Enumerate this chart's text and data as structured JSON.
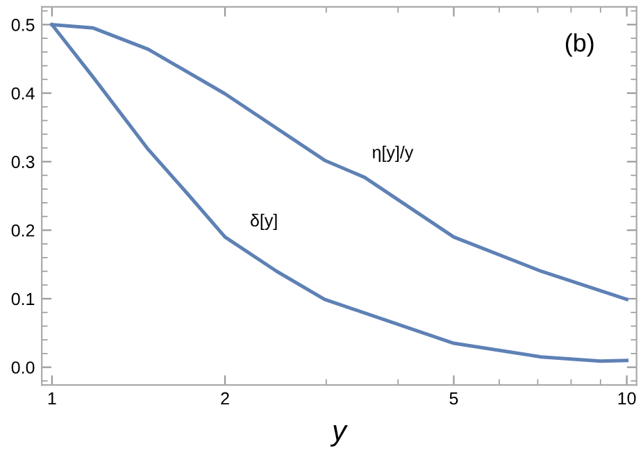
{
  "chart_data": {
    "type": "line",
    "xlabel": "y",
    "log": "x",
    "xlim": [
      0.96,
      10.4
    ],
    "ylim": [
      -0.026,
      0.526
    ],
    "xticks": [
      1,
      2,
      5,
      10
    ],
    "yticks": [
      {
        "value": 0,
        "label": "0.0"
      },
      0.1,
      0.2,
      0.3,
      0.4,
      0.5
    ],
    "grid": false,
    "marker": "none",
    "line_style": "solid",
    "series": [
      {
        "color": "#5e81b5",
        "x": [
          1,
          1.18,
          1.47,
          2,
          2.98,
          3.5,
          5,
          7.1,
          10
        ],
        "values": [
          0.5,
          0.495,
          0.464,
          0.399,
          0.302,
          0.277,
          0.19,
          0.14,
          0.099
        ]
      },
      {
        "color": "#5e81b5",
        "x": [
          1,
          1.18,
          1.47,
          1.73,
          2,
          2.46,
          2.98,
          5,
          7.1,
          9,
          10
        ],
        "values": [
          0.5,
          0.423,
          0.318,
          0.251,
          0.19,
          0.14,
          0.099,
          0.035,
          0.015,
          0.009,
          0.01
        ]
      }
    ],
    "annotations": [
      "η[y]/y",
      "δ[y]",
      "(b)"
    ]
  }
}
